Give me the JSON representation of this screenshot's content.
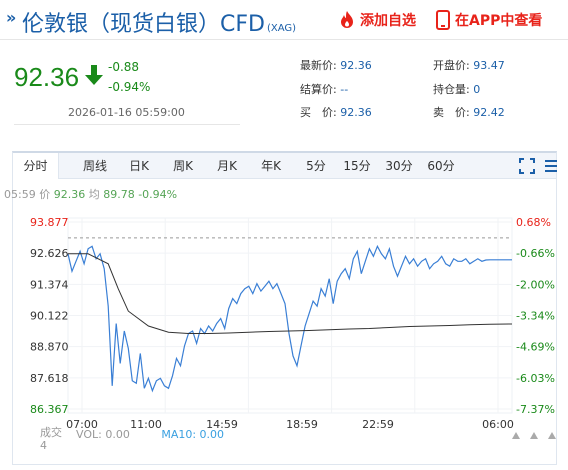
{
  "header": {
    "title": "伦敦银（现货白银）CFD",
    "title_sub": "(XAG)",
    "add_watchlist": "添加自选",
    "open_in_app": "在APP中查看"
  },
  "quote": {
    "price": "92.36",
    "change": "-0.88",
    "change_pct": "-0.94%",
    "datetime": "2026-01-16 05:59:00",
    "latest_label": "最新价:",
    "latest_value": "92.36",
    "settle_label": "结算价:",
    "settle_value": "--",
    "buy_label": "买　价:",
    "buy_value": "92.36",
    "open_label": "开盘价:",
    "open_value": "93.47",
    "oi_label": "持仓量:",
    "oi_value": "0",
    "sell_label": "卖　价:",
    "sell_value": "92.42"
  },
  "tabs": [
    "分时",
    "周线",
    "日K",
    "周K",
    "月K",
    "年K",
    "5分",
    "15分",
    "30分",
    "60分"
  ],
  "stat_line": {
    "time": "05:59",
    "price_label": "价",
    "price": "92.36",
    "avg_label": "均",
    "avg": "89.78",
    "pct": "-0.94%"
  },
  "volume": {
    "left_label": "成交",
    "left_value": "4",
    "vol_text": "VOL: 0.00",
    "ma_text": "MA10: 0.00"
  },
  "colors": {
    "up": "#e8231a",
    "down": "#1a8a1a",
    "brand": "#1b5fa8",
    "price_line": "#3a7fd5",
    "avg_line": "#333333"
  },
  "chart_data": {
    "type": "line",
    "y_left_ticks": [
      "93.877",
      "92.626",
      "91.374",
      "90.122",
      "88.870",
      "87.618",
      "86.367"
    ],
    "y_right_ticks": [
      "0.68%",
      "-0.66%",
      "-2.00%",
      "-3.34%",
      "-4.69%",
      "-6.03%",
      "-7.37%"
    ],
    "x_ticks": [
      "07:00",
      "11:00",
      "14:59",
      "18:59",
      "22:59",
      "06:00"
    ],
    "ylim": [
      86.367,
      93.877
    ],
    "prev_close": 93.24,
    "series": [
      {
        "name": "价",
        "x": [
          0,
          4,
          8,
          12,
          16,
          20,
          24,
          28,
          32,
          36,
          40,
          44,
          48,
          52,
          56,
          60,
          64,
          68,
          72,
          76,
          80,
          84,
          88,
          92,
          96,
          100,
          104,
          108,
          112,
          116,
          120,
          124,
          128,
          132,
          136,
          140,
          144,
          148,
          152,
          156,
          160,
          164,
          168,
          172,
          176,
          180,
          184,
          188,
          192,
          196,
          200,
          204,
          208,
          212,
          216,
          220,
          224,
          228,
          232,
          236,
          240,
          244,
          248,
          252,
          256,
          260,
          264,
          268,
          272,
          276,
          280,
          284,
          288,
          292,
          296,
          300,
          304,
          308,
          312,
          316,
          320,
          324,
          328,
          332,
          336,
          340,
          344,
          348,
          352,
          356,
          360,
          364,
          368,
          372,
          376,
          380,
          384,
          388,
          392,
          396,
          400,
          404,
          408,
          412,
          416,
          420,
          424,
          428,
          432,
          436,
          440,
          442
        ],
        "y": [
          92.6,
          91.9,
          92.3,
          92.7,
          92.2,
          92.8,
          92.9,
          92.4,
          92.6,
          92.0,
          90.5,
          87.3,
          89.8,
          88.2,
          89.5,
          88.8,
          87.5,
          87.4,
          88.6,
          87.2,
          87.6,
          87.1,
          87.5,
          87.6,
          87.3,
          87.2,
          87.7,
          88.4,
          88.1,
          88.9,
          89.4,
          89.5,
          89.0,
          89.6,
          89.4,
          89.7,
          89.5,
          89.8,
          90.0,
          89.6,
          90.4,
          90.8,
          90.6,
          91.0,
          91.2,
          91.3,
          91.0,
          91.4,
          91.1,
          91.3,
          91.5,
          91.2,
          91.4,
          91.0,
          90.6,
          89.4,
          88.5,
          88.1,
          88.9,
          89.7,
          90.2,
          90.7,
          90.5,
          91.2,
          90.9,
          91.6,
          90.6,
          91.5,
          91.8,
          92.0,
          91.6,
          92.4,
          92.7,
          91.8,
          92.3,
          92.8,
          92.5,
          92.9,
          92.6,
          92.4,
          92.8,
          92.1,
          91.7,
          92.1,
          92.5,
          92.2,
          92.4,
          92.1,
          92.3,
          92.4,
          92.0,
          92.2,
          92.3,
          92.5,
          92.2,
          92.1,
          92.4,
          92.3,
          92.3,
          92.4,
          92.2,
          92.3,
          92.4,
          92.3,
          92.35,
          92.36,
          92.36,
          92.36,
          92.36,
          92.36,
          92.36,
          92.36
        ]
      },
      {
        "name": "均",
        "x": [
          0,
          20,
          40,
          50,
          60,
          80,
          100,
          120,
          140,
          160,
          180,
          200,
          220,
          240,
          260,
          280,
          300,
          320,
          340,
          360,
          380,
          400,
          420,
          442
        ],
        "y": [
          92.6,
          92.6,
          92.2,
          91.2,
          90.3,
          89.7,
          89.45,
          89.4,
          89.4,
          89.42,
          89.45,
          89.48,
          89.5,
          89.52,
          89.55,
          89.58,
          89.6,
          89.64,
          89.68,
          89.7,
          89.72,
          89.75,
          89.77,
          89.78
        ]
      }
    ]
  }
}
